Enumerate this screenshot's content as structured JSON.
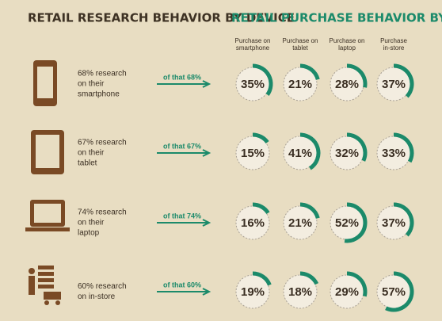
{
  "research_title": "RETAIL RESEARCH  BEHAVIOR BY DEVICE",
  "purchase_title": "RETAIL PURCHASE BEHAVIOR BY DEVICE",
  "color": "#1b8a6a",
  "columns": [
    [
      "Purchase on",
      "smartphone"
    ],
    [
      "Purchase on",
      "tablet"
    ],
    [
      "Purchase on",
      "laptop"
    ],
    [
      "Purchase",
      "in-store"
    ]
  ],
  "rows": [
    {
      "device": [
        "68% research",
        "on their",
        "smartphone"
      ],
      "of_that": "of that 68%",
      "values": [
        35,
        21,
        28,
        37
      ],
      "value_labels": [
        "35%",
        "21%",
        "28%",
        "37%"
      ]
    },
    {
      "device": [
        "67% research",
        "on their",
        "tablet"
      ],
      "of_that": "of that 67%",
      "values": [
        15,
        41,
        32,
        33
      ],
      "value_labels": [
        "15%",
        "41%",
        "32%",
        "33%"
      ]
    },
    {
      "device": [
        "74% research",
        "on their",
        "laptop"
      ],
      "of_that": "of that 74%",
      "values": [
        16,
        21,
        52,
        37
      ],
      "value_labels": [
        "16%",
        "21%",
        "52%",
        "37%"
      ]
    },
    {
      "device": [
        "60% research",
        "on in-store"
      ],
      "of_that": "of that 60%",
      "values": [
        19,
        18,
        29,
        57
      ],
      "value_labels": [
        "19%",
        "18%",
        "29%",
        "57%"
      ]
    }
  ]
}
